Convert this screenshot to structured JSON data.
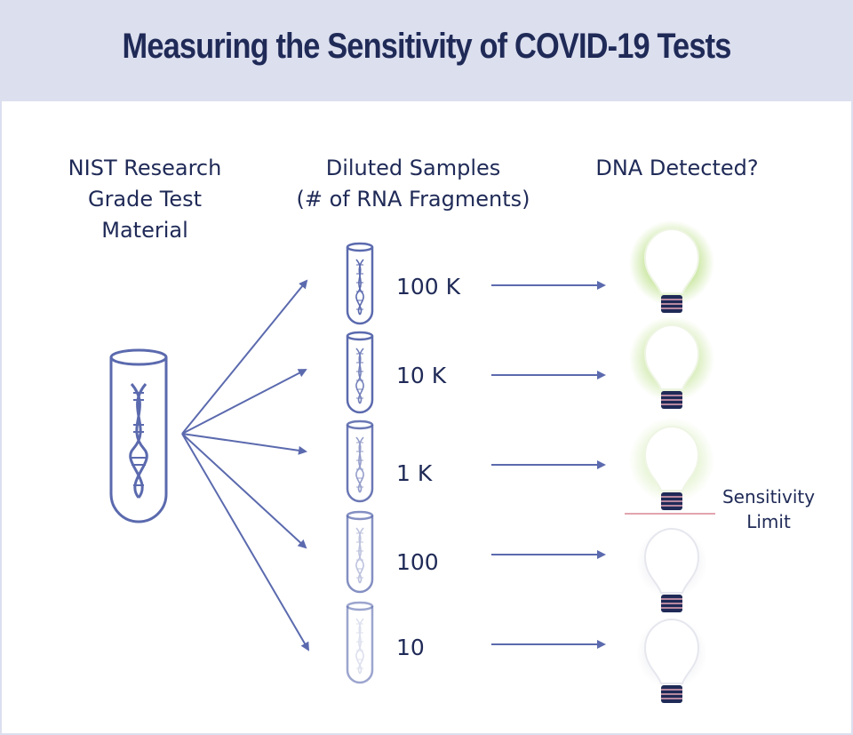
{
  "title": "Measuring the Sensitivity of COVID-19 Tests",
  "columns": {
    "source": [
      "NIST Research",
      "Grade Test",
      "Material"
    ],
    "samples": [
      "Diluted Samples",
      "(# of RNA Fragments)"
    ],
    "result": "DNA Detected?"
  },
  "samples": [
    {
      "label": "100 K",
      "detected": true,
      "glow": 1.0
    },
    {
      "label": "10 K",
      "detected": true,
      "glow": 0.75
    },
    {
      "label": "1 K",
      "detected": true,
      "glow": 0.45
    },
    {
      "label": "100",
      "detected": false,
      "glow": 0.0
    },
    {
      "label": "10",
      "detected": false,
      "glow": 0.0
    }
  ],
  "sensitivity_limit": [
    "Sensitivity",
    "Limit"
  ],
  "colors": {
    "navy": "#1f2a57",
    "arrow": "#5b6aae",
    "glow": "#9bd14e",
    "limit_line": "#e2a5b0",
    "header_bg": "#dcdfee"
  }
}
